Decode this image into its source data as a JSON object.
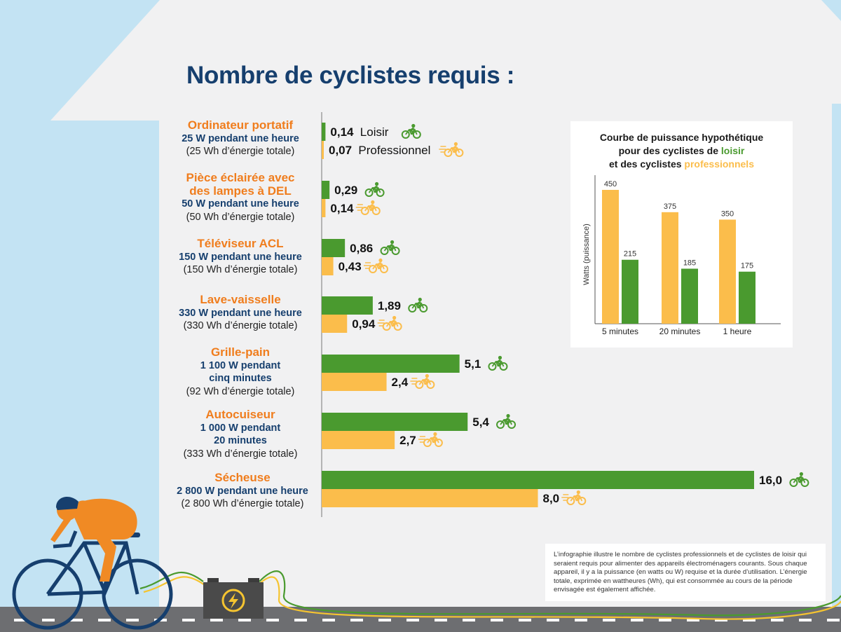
{
  "title": "Nombre de cyclistes requis :",
  "colors": {
    "leisure": "#4a9a2f",
    "pro": "#fbbd4b",
    "accent": "#f07d1d",
    "navy": "#163f6e"
  },
  "chart_data": [
    {
      "type": "bar",
      "orientation": "horizontal",
      "title": "Nombre de cyclistes requis :",
      "categories": [
        "Ordinateur portatif",
        "Pièce éclairée avec des lampes à DEL",
        "Téléviseur ACL",
        "Lave-vaisselle",
        "Grille-pain",
        "Autocuiseur",
        "Sécheuse"
      ],
      "series": [
        {
          "name": "Loisir",
          "values": [
            0.14,
            0.29,
            0.86,
            1.89,
            5.1,
            5.4,
            16.0
          ],
          "labels": [
            "0,14",
            "0,29",
            "0,86",
            "1,89",
            "5,1",
            "5,4",
            "16,0"
          ],
          "color": "#4a9a2f"
        },
        {
          "name": "Professionnel",
          "values": [
            0.07,
            0.14,
            0.43,
            0.94,
            2.4,
            2.7,
            8.0
          ],
          "labels": [
            "0,07",
            "0,14",
            "0,43",
            "0,94",
            "2,4",
            "2,7",
            "8,0"
          ],
          "color": "#fbbd4b"
        }
      ],
      "xlim": [
        0,
        16
      ]
    },
    {
      "type": "bar",
      "title": "Courbe de puissance hypothétique pour des cyclistes de loisir et des cyclistes professionnels",
      "categories": [
        "5 minutes",
        "20 minutes",
        "1 heure"
      ],
      "series": [
        {
          "name": "professionnels",
          "values": [
            450,
            375,
            350
          ],
          "color": "#fbbd4b"
        },
        {
          "name": "loisir",
          "values": [
            215,
            185,
            175
          ],
          "color": "#4a9a2f"
        }
      ],
      "ylabel": "Watts (puissance)",
      "ylim": [
        0,
        500
      ]
    }
  ],
  "appliances": [
    {
      "name_lines": [
        "Ordinateur portatif"
      ],
      "power_lines": [
        "25 W pendant une heure"
      ],
      "energy": "(25 Wh d’énergie totale)"
    },
    {
      "name_lines": [
        "Pièce éclairée avec",
        "des lampes à DEL"
      ],
      "power_lines": [
        "50 W pendant une heure"
      ],
      "energy": "(50 Wh d’énergie totale)"
    },
    {
      "name_lines": [
        "Téléviseur ACL"
      ],
      "power_lines": [
        "150 W pendant une heure"
      ],
      "energy": "(150 Wh d’énergie totale)"
    },
    {
      "name_lines": [
        "Lave-vaisselle"
      ],
      "power_lines": [
        "330 W pendant une heure"
      ],
      "energy": "(330 Wh d’énergie totale)"
    },
    {
      "name_lines": [
        "Grille-pain"
      ],
      "power_lines": [
        "1 100 W pendant",
        "cinq minutes"
      ],
      "energy": "(92 Wh d’énergie totale)"
    },
    {
      "name_lines": [
        "Autocuiseur"
      ],
      "power_lines": [
        "1 000 W pendant",
        "20 minutes"
      ],
      "energy": "(333 Wh d’énergie totale)"
    },
    {
      "name_lines": [
        "Sécheuse"
      ],
      "power_lines": [
        "2 800 W pendant une heure"
      ],
      "energy": "(2 800 Wh d’énergie totale)"
    }
  ],
  "legend_words": {
    "leisure": "Loisir",
    "pro": "Professionnel"
  },
  "inset": {
    "title_line1": "Courbe de puissance hypothétique",
    "title_line2_prefix": "pour des cyclistes de ",
    "title_line2_highlight": "loisir",
    "title_line3_prefix": "et des cyclistes ",
    "title_line3_highlight": "professionnels",
    "ylabel": "Watts (puissance)"
  },
  "note": "L’infographie illustre le nombre de cyclistes professionnels et de cyclistes de loisir qui seraient requis pour alimenter des appareils électroménagers courants. Sous chaque appareil, il y a la puissance (en watts ou W) requise et la durée d’utilisation. L’énergie totale, exprimée en wattheures (Wh), qui est consommée au cours de la période envisagée est également affichée.",
  "icons": [
    "bicycle-icon",
    "lightning-icon",
    "battery-icon",
    "cyclist-illustration"
  ]
}
